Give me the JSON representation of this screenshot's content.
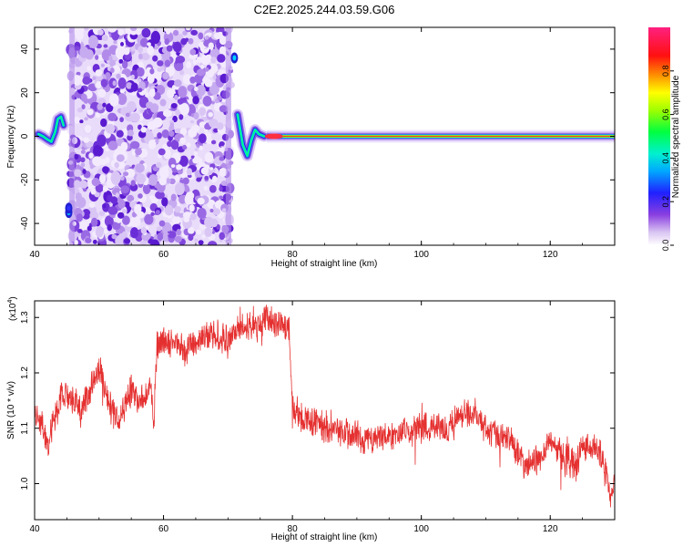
{
  "title": "C2E2.2025.244.03.59.G06",
  "chart_data": [
    {
      "type": "heatmap",
      "xlabel": "Height of straight line (km)",
      "ylabel": "Frequency (Hz)",
      "xlim": [
        40,
        130
      ],
      "ylim": [
        -50,
        50
      ],
      "xticks": [
        40,
        60,
        80,
        100,
        120
      ],
      "yticks": [
        -40,
        -20,
        0,
        20,
        40
      ],
      "colorbar": {
        "label": "Normalized spectral amplitude",
        "range": [
          0.0,
          1.0
        ],
        "ticks": [
          "0.0",
          "0.2",
          "0.4",
          "0.6",
          "0.8"
        ],
        "colormap": "rainbow (violet-blue-cyan-green-yellow-orange-red-magenta)"
      },
      "features": {
        "noise_region_km": [
          45.5,
          70.5
        ],
        "line_center_hz": 0,
        "line_start_km": 76,
        "line_end_km": 130
      }
    },
    {
      "type": "line",
      "xlabel": "Height of straight line (km)",
      "ylabel": "SNR (10 * v/v)",
      "multiplier_label": "(x10",
      "multiplier_exp": "4",
      "multiplier_close": ")",
      "xlim": [
        40,
        130
      ],
      "ylim": [
        0.935,
        1.33
      ],
      "xticks": [
        40,
        60,
        80,
        100,
        120
      ],
      "yticks": [
        "1.0",
        "1.1",
        "1.2",
        "1.3"
      ],
      "series": [
        {
          "color": "#e53030",
          "x": [
            40,
            41,
            42,
            43,
            44,
            45,
            46,
            47,
            48,
            49,
            50,
            51,
            52,
            53,
            54,
            55,
            56,
            57,
            58,
            58.5,
            59,
            60,
            62,
            64,
            66,
            68,
            70,
            72,
            74,
            75,
            76,
            78,
            79.5,
            80,
            81,
            84,
            88,
            92,
            96,
            100,
            104,
            106,
            108,
            110,
            112,
            114,
            116,
            118,
            119,
            120,
            122,
            124,
            125,
            126,
            128,
            129.5,
            130
          ],
          "y": [
            1.14,
            1.11,
            1.07,
            1.11,
            1.15,
            1.16,
            1.15,
            1.14,
            1.15,
            1.18,
            1.21,
            1.17,
            1.13,
            1.12,
            1.14,
            1.17,
            1.15,
            1.16,
            1.17,
            1.11,
            1.25,
            1.26,
            1.25,
            1.24,
            1.26,
            1.27,
            1.26,
            1.28,
            1.29,
            1.28,
            1.3,
            1.29,
            1.28,
            1.14,
            1.12,
            1.11,
            1.09,
            1.08,
            1.09,
            1.1,
            1.1,
            1.12,
            1.13,
            1.1,
            1.09,
            1.08,
            1.03,
            1.04,
            1.06,
            1.08,
            1.05,
            1.03,
            1.07,
            1.07,
            1.05,
            0.97,
            1.02
          ]
        }
      ]
    }
  ]
}
